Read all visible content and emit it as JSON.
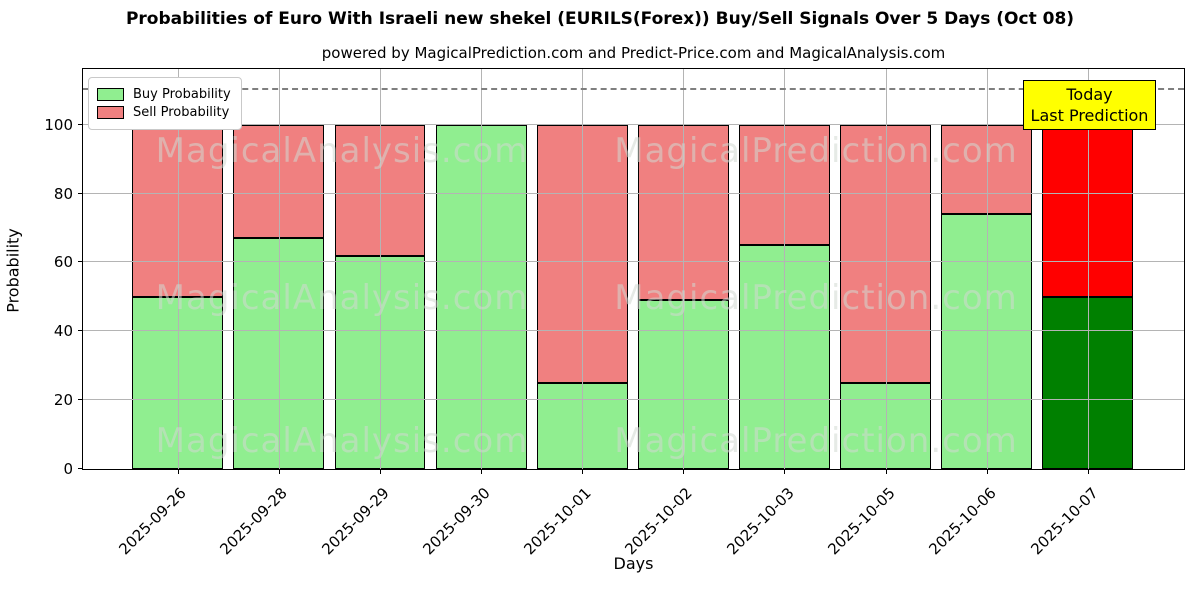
{
  "title": "Probabilities of Euro With Israeli new shekel (EURILS(Forex)) Buy/Sell Signals Over 5 Days (Oct 08)",
  "subtitle": "powered by MagicalPrediction.com and Predict-Price.com and MagicalAnalysis.com",
  "legend": {
    "buy_label": "Buy Probability",
    "sell_label": "Sell Probability"
  },
  "annotation": {
    "line1": "Today",
    "line2": "Last Prediction"
  },
  "axes": {
    "xlabel": "Days",
    "ylabel": "Probability",
    "yticks": [
      0,
      20,
      40,
      60,
      80,
      100
    ]
  },
  "watermarks": [
    "MagicalAnalysis.com",
    "MagicalPrediction.com"
  ],
  "colors": {
    "buy": "#90ee90",
    "sell": "#f08080",
    "today_buy": "#008000",
    "today_sell": "#ff0000",
    "annotation_bg": "#ffff00",
    "grid": "#b4b4b4",
    "dashed_line": "#7f7f7f"
  },
  "chart_data": {
    "type": "bar",
    "stacked": true,
    "title": "Probabilities of Euro With Israeli new shekel (EURILS(Forex)) Buy/Sell Signals Over 5 Days (Oct 08)",
    "xlabel": "Days",
    "ylabel": "Probability",
    "categories": [
      "2025-09-26",
      "2025-09-28",
      "2025-09-29",
      "2025-09-30",
      "2025-10-01",
      "2025-10-02",
      "2025-10-03",
      "2025-10-05",
      "2025-10-06",
      "2025-10-07"
    ],
    "series": [
      {
        "name": "Buy Probability",
        "values": [
          50,
          67,
          62,
          100,
          25,
          49,
          65,
          25,
          74,
          50
        ]
      },
      {
        "name": "Sell Probability",
        "values": [
          50,
          33,
          38,
          0,
          75,
          51,
          35,
          75,
          26,
          50
        ]
      }
    ],
    "today_bar_index": 9,
    "ylim": [
      0,
      116
    ],
    "dashed_line_y": 110,
    "grid": true,
    "legend_position": "upper left"
  }
}
